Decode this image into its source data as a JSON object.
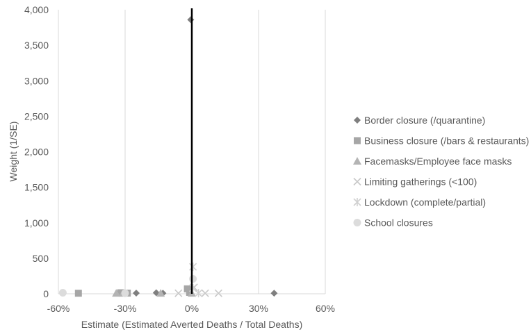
{
  "chart_data": {
    "type": "scatter",
    "xlabel": "Estimate (Estimated Averted Deaths / Total Deaths)",
    "ylabel": "Weight (1/SE)",
    "xlim": [
      -0.6,
      0.6
    ],
    "ylim": [
      0,
      4000
    ],
    "x_ticks": [
      {
        "value": -0.6,
        "label": "-60%"
      },
      {
        "value": -0.3,
        "label": "-30%"
      },
      {
        "value": 0.0,
        "label": "0%"
      },
      {
        "value": 0.3,
        "label": "30%"
      },
      {
        "value": 0.6,
        "label": "60%"
      }
    ],
    "y_ticks": [
      {
        "value": 0,
        "label": "0"
      },
      {
        "value": 500,
        "label": "500"
      },
      {
        "value": 1000,
        "label": "1,000"
      },
      {
        "value": 1500,
        "label": "1,500"
      },
      {
        "value": 2000,
        "label": "2,000"
      },
      {
        "value": 2500,
        "label": "2,500"
      },
      {
        "value": 3000,
        "label": "3,000"
      },
      {
        "value": 3500,
        "label": "3,500"
      },
      {
        "value": 4000,
        "label": "4,000"
      }
    ],
    "grid": "vertical",
    "reference_line_x": 0,
    "legend_position": "right",
    "series": [
      {
        "name": "Border closure (/quarantine)",
        "marker": "diamond",
        "color": "#7f7f7f",
        "points": [
          {
            "x": -0.005,
            "y": 3860
          },
          {
            "x": 0.37,
            "y": 8
          },
          {
            "x": -0.16,
            "y": 15
          },
          {
            "x": -0.25,
            "y": 10
          },
          {
            "x": -0.13,
            "y": 8
          }
        ]
      },
      {
        "name": "Business closure (/bars & restaurants)",
        "marker": "square",
        "color": "#a6a6a6",
        "points": [
          {
            "x": -0.51,
            "y": 8
          },
          {
            "x": -0.32,
            "y": 15
          },
          {
            "x": -0.29,
            "y": 10
          },
          {
            "x": -0.02,
            "y": 70
          },
          {
            "x": -0.01,
            "y": 20
          }
        ]
      },
      {
        "name": "Facemasks/Employee face masks",
        "marker": "triangle",
        "color": "#b4b4b4",
        "points": [
          {
            "x": -0.34,
            "y": 8
          },
          {
            "x": -0.31,
            "y": 8
          },
          {
            "x": -0.14,
            "y": 8
          },
          {
            "x": 0.0,
            "y": 8
          }
        ]
      },
      {
        "name": "Limiting gatherings (<100)",
        "marker": "x",
        "color": "#c8c8c8",
        "points": [
          {
            "x": -0.06,
            "y": 8
          },
          {
            "x": 0.06,
            "y": 8
          },
          {
            "x": 0.12,
            "y": 8
          },
          {
            "x": 0.01,
            "y": 90
          }
        ]
      },
      {
        "name": "Lockdown (complete/partial)",
        "marker": "star",
        "color": "#d0d0d0",
        "points": [
          {
            "x": 0.005,
            "y": 380
          },
          {
            "x": 0.005,
            "y": 80
          },
          {
            "x": 0.03,
            "y": 8
          }
        ]
      },
      {
        "name": "School closures",
        "marker": "circle",
        "color": "#dcdcdc",
        "points": [
          {
            "x": -0.58,
            "y": 15
          },
          {
            "x": 0.005,
            "y": 210
          },
          {
            "x": -0.3,
            "y": 8
          }
        ]
      }
    ]
  }
}
